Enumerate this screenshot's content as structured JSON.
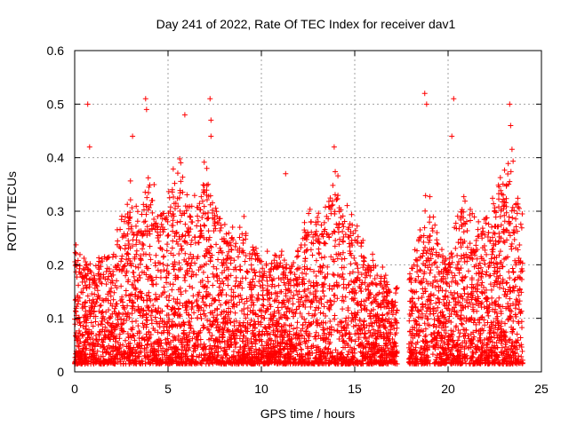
{
  "chart_data": {
    "type": "scatter",
    "title": "Day 241 of 2022, Rate Of TEC Index for receiver dav1",
    "xlabel": "GPS time / hours",
    "ylabel": "ROTI / TECUs",
    "xlim": [
      0,
      25
    ],
    "ylim": [
      0,
      0.6
    ],
    "xticks": [
      0,
      5,
      10,
      15,
      20,
      25
    ],
    "yticks": [
      0,
      0.1,
      0.2,
      0.3,
      0.4,
      0.5,
      0.6
    ],
    "xtick_labels": [
      "0",
      "5",
      "10",
      "15",
      "20",
      "25"
    ],
    "ytick_labels": [
      "0",
      "0.1",
      "0.2",
      "0.3",
      "0.4",
      "0.5",
      "0.6"
    ],
    "grid": true,
    "marker": "+",
    "marker_color": "#ff0000",
    "data_gap_hours": [
      17.3,
      17.9
    ],
    "envelope": {
      "x": [
        0,
        0.5,
        1,
        1.5,
        2,
        2.5,
        3,
        3.5,
        4,
        4.5,
        5,
        5.5,
        6,
        6.5,
        7,
        7.5,
        8,
        8.5,
        9,
        9.5,
        10,
        10.5,
        11,
        11.5,
        12,
        12.5,
        13,
        13.5,
        14,
        14.5,
        15,
        15.5,
        16,
        16.5,
        17,
        18,
        18.5,
        19,
        19.5,
        20,
        20.5,
        21,
        21.5,
        22,
        22.5,
        23,
        23.5,
        24
      ],
      "typical_max": [
        0.22,
        0.2,
        0.18,
        0.22,
        0.2,
        0.26,
        0.32,
        0.28,
        0.34,
        0.27,
        0.3,
        0.36,
        0.32,
        0.3,
        0.35,
        0.3,
        0.25,
        0.24,
        0.26,
        0.22,
        0.2,
        0.2,
        0.21,
        0.18,
        0.22,
        0.26,
        0.28,
        0.3,
        0.33,
        0.28,
        0.25,
        0.22,
        0.2,
        0.17,
        0.14,
        0.17,
        0.25,
        0.32,
        0.22,
        0.18,
        0.28,
        0.3,
        0.27,
        0.25,
        0.3,
        0.35,
        0.38,
        0.25
      ]
    },
    "peaks": [
      {
        "x": 0.7,
        "y": 0.5
      },
      {
        "x": 0.8,
        "y": 0.42
      },
      {
        "x": 3.1,
        "y": 0.44
      },
      {
        "x": 3.8,
        "y": 0.51
      },
      {
        "x": 3.85,
        "y": 0.49
      },
      {
        "x": 5.9,
        "y": 0.48
      },
      {
        "x": 7.25,
        "y": 0.51
      },
      {
        "x": 7.3,
        "y": 0.47
      },
      {
        "x": 7.3,
        "y": 0.44
      },
      {
        "x": 11.3,
        "y": 0.37
      },
      {
        "x": 13.9,
        "y": 0.42
      },
      {
        "x": 18.75,
        "y": 0.52
      },
      {
        "x": 18.85,
        "y": 0.5
      },
      {
        "x": 20.3,
        "y": 0.51
      },
      {
        "x": 20.2,
        "y": 0.44
      },
      {
        "x": 23.3,
        "y": 0.5
      },
      {
        "x": 23.35,
        "y": 0.46
      }
    ]
  }
}
